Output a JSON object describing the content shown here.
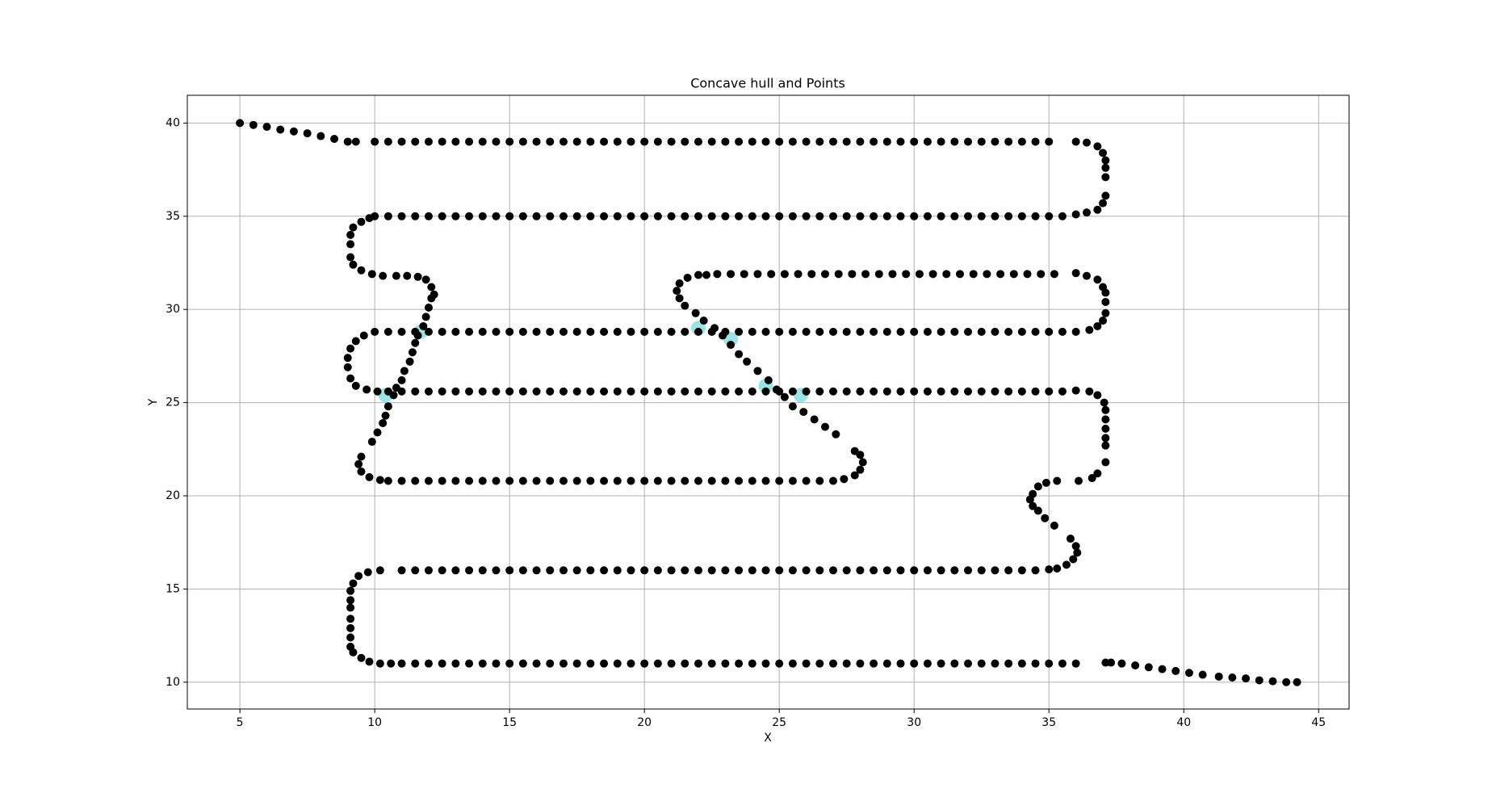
{
  "chart_data": {
    "type": "scatter",
    "title": "Concave hull and Points",
    "xlabel": "X",
    "ylabel": "Y",
    "xlim": [
      3.05,
      46.13
    ],
    "ylim": [
      8.56,
      41.49
    ],
    "xticks": [
      5,
      10,
      15,
      20,
      25,
      30,
      35,
      40,
      45
    ],
    "yticks": [
      10,
      15,
      20,
      25,
      30,
      35,
      40
    ],
    "grid": true,
    "series": [
      {
        "color": "#7fdede",
        "x": [
          11.7,
          10.4,
          22,
          23.2,
          24.5,
          25.8
        ],
        "y": [
          28.8,
          25.4,
          29,
          28.4,
          25.9,
          25.4
        ]
      },
      {
        "color": "#000000",
        "x": [
          5,
          5.5,
          6,
          6.5,
          7,
          7.5,
          8,
          8.5,
          9,
          9.3,
          10,
          10.5,
          11,
          11.5,
          12,
          12.5,
          13,
          13.5,
          14,
          14.5,
          15,
          15.5,
          16,
          16.5,
          17,
          17.5,
          18,
          18.5,
          19,
          19.5,
          20,
          20.5,
          21,
          21.5,
          22,
          22.5,
          23,
          23.5,
          24,
          24.5,
          25,
          25.5,
          26,
          26.5,
          27,
          27.5,
          28,
          28.5,
          29,
          29.5,
          30,
          30.5,
          31,
          31.5,
          32,
          32.5,
          33,
          33.5,
          34,
          34.5,
          35,
          36,
          36.4,
          36.8,
          37,
          37.1,
          37.1,
          37.1,
          37.1,
          37,
          36.8,
          36.4,
          36,
          35.5,
          35,
          34.5,
          34,
          33.5,
          33,
          32.5,
          32,
          31.5,
          31,
          30.5,
          30,
          29.5,
          29,
          28.5,
          28,
          27.5,
          27,
          26.5,
          26,
          25.5,
          25,
          24.5,
          24,
          23.5,
          23,
          22.5,
          22,
          21.5,
          21,
          20.5,
          20,
          19.5,
          19,
          18.5,
          18,
          17.5,
          17,
          16.5,
          16,
          15.5,
          15,
          14.5,
          14,
          13.5,
          13,
          12.5,
          12,
          11.5,
          11,
          10.5,
          10,
          9.8,
          9.5,
          9.2,
          9.1,
          9.1,
          9.1,
          9.2,
          9.5,
          9.9,
          10.3,
          10.8,
          11.2,
          11.6,
          11.9,
          12.1,
          12.2,
          12.1,
          12,
          11.9,
          11.8,
          11.6,
          11.5,
          11.4,
          11.3,
          11.1,
          11,
          10.8,
          10.7,
          10.5,
          10.4,
          10.3,
          10.1,
          9.9,
          9.5,
          9.4,
          9.5,
          9.8,
          10.2,
          10.5,
          11,
          11.5,
          12,
          12.5,
          13,
          13.5,
          14,
          14.5,
          15,
          15.5,
          16,
          16.5,
          17,
          17.5,
          18,
          18.5,
          19,
          19.5,
          20,
          20.5,
          21,
          21.5,
          22,
          22.5,
          23,
          23.5,
          24,
          24.5,
          25,
          25.5,
          26,
          26.5,
          27,
          27.4,
          27.8,
          28,
          28.1,
          28,
          27.8,
          27.1,
          26.7,
          26.3,
          25.9,
          25.5,
          25.2,
          24.9,
          24.6,
          24.2,
          23.8,
          23.5,
          23.2,
          22.9,
          22.6,
          22.2,
          21.9,
          21.5,
          21.3,
          21.2,
          21.3,
          21.6,
          22,
          22.3,
          22.7,
          23.2,
          23.7,
          24.2,
          24.7,
          25.2,
          25.7,
          26.2,
          26.7,
          27.2,
          27.7,
          28.2,
          28.7,
          29.2,
          29.7,
          30.2,
          30.7,
          31.2,
          31.7,
          32.2,
          32.7,
          33.2,
          33.7,
          34.2,
          34.7,
          35.2,
          36,
          36.4,
          36.8,
          37,
          37.1,
          37.1,
          37.1,
          37,
          36.8,
          36.5,
          36,
          35.5,
          35,
          34.5,
          34,
          33.5,
          33,
          32.5,
          32,
          31.5,
          31,
          30.5,
          30,
          29.5,
          29,
          28.5,
          28,
          27.5,
          27,
          26.5,
          26,
          25.5,
          25,
          24.5,
          24,
          23.5,
          23,
          22.5,
          22,
          21.5,
          21,
          20.5,
          20,
          19.5,
          19,
          18.5,
          18,
          17.5,
          17,
          16.5,
          16,
          15.5,
          15,
          14.5,
          14,
          13.5,
          13,
          12.5,
          12,
          11.5,
          11,
          10.5,
          10,
          9.6,
          9.3,
          9.1,
          9,
          9,
          9.1,
          9.3,
          9.7,
          10.1,
          10.5,
          11,
          11.5,
          12,
          12.5,
          13,
          13.5,
          14,
          14.5,
          15,
          15.5,
          16,
          16.5,
          17,
          17.5,
          18,
          18.5,
          19,
          19.5,
          20,
          20.5,
          21,
          21.5,
          22,
          22.5,
          23,
          23.5,
          24,
          24.5,
          25,
          25.5,
          26,
          26.5,
          27,
          27.5,
          28,
          28.5,
          29,
          29.5,
          30,
          30.5,
          31,
          31.5,
          32,
          32.5,
          33,
          33.5,
          34,
          34.5,
          35,
          35.5,
          36,
          36.5,
          36.8,
          37.05,
          37.1,
          37.1,
          37.1,
          37.1,
          37.1,
          37.1,
          36.8,
          36.6,
          36.1,
          35.3,
          34.9,
          34.6,
          34.4,
          34.3,
          34.4,
          34.6,
          34.85,
          35.2,
          35.8,
          36,
          36.05,
          35.9,
          35.65,
          35.3,
          35,
          34.5,
          34,
          33.5,
          33,
          32.5,
          32,
          31.5,
          31,
          30.5,
          30,
          29.5,
          29,
          28.5,
          28,
          27.5,
          27,
          26.5,
          26,
          25.5,
          25,
          24.5,
          24,
          23.5,
          23,
          22.5,
          22,
          21.5,
          21,
          20.5,
          20,
          19.5,
          19,
          18.5,
          18,
          17.5,
          17,
          16.5,
          16,
          15.5,
          15,
          14.5,
          14,
          13.5,
          13,
          12.5,
          12,
          11.5,
          11,
          10.2,
          9.75,
          9.4,
          9.2,
          9.1,
          9.1,
          9.1,
          9.1,
          9.1,
          9.1,
          9.1,
          9.2,
          9.5,
          9.8,
          10.2,
          10.6,
          11,
          11.5,
          12,
          12.5,
          13,
          13.5,
          14,
          14.5,
          15,
          15.5,
          16,
          16.5,
          17,
          17.5,
          18,
          18.5,
          19,
          19.5,
          20,
          20.5,
          21,
          21.5,
          22,
          22.5,
          23,
          23.5,
          24,
          24.5,
          25,
          25.5,
          26,
          26.5,
          27,
          27.5,
          28,
          28.5,
          29,
          29.5,
          30,
          30.5,
          31,
          31.5,
          32,
          32.5,
          33,
          33.5,
          34,
          34.5,
          35,
          35.5,
          36,
          37.1,
          37.3,
          37.7,
          38.2,
          38.7,
          39.2,
          39.7,
          40.2,
          40.7,
          41.3,
          41.8,
          42.3,
          42.8,
          43.3,
          43.8,
          44.2
        ],
        "y": [
          40,
          39.9,
          39.8,
          39.65,
          39.55,
          39.45,
          39.3,
          39.15,
          39,
          39,
          39,
          39,
          39,
          39,
          39,
          39,
          39,
          39,
          39,
          39,
          39,
          39,
          39,
          39,
          39,
          39,
          39,
          39,
          39,
          39,
          39,
          39,
          39,
          39,
          39,
          39,
          39,
          39,
          39,
          39,
          39,
          39,
          39,
          39,
          39,
          39,
          39,
          39,
          39,
          39,
          39,
          39,
          39,
          39,
          39,
          39,
          39,
          39,
          39,
          39,
          39,
          39,
          38.95,
          38.75,
          38.4,
          38,
          37.6,
          37.1,
          36.1,
          35.7,
          35.35,
          35.2,
          35.1,
          35,
          35,
          35,
          35,
          35,
          35,
          35,
          35,
          35,
          35,
          35,
          35,
          35,
          35,
          35,
          35,
          35,
          35,
          35,
          35,
          35,
          35,
          35,
          35,
          35,
          35,
          35,
          35,
          35,
          35,
          35,
          35,
          35,
          35,
          35,
          35,
          35,
          35,
          35,
          35,
          35,
          35,
          35,
          35,
          35,
          35,
          35,
          35,
          35,
          35,
          35,
          35,
          34.9,
          34.7,
          34.4,
          34,
          33.5,
          32.8,
          32.4,
          32.1,
          31.9,
          31.8,
          31.8,
          31.8,
          31.75,
          31.6,
          31.2,
          30.8,
          30.6,
          30.1,
          29.6,
          29.1,
          28.6,
          28.2,
          27.7,
          27.2,
          26.7,
          26.2,
          25.8,
          25.4,
          24.8,
          24.3,
          23.9,
          23.4,
          22.9,
          22.1,
          21.7,
          21.3,
          21,
          20.85,
          20.8,
          20.8,
          20.8,
          20.8,
          20.8,
          20.8,
          20.8,
          20.8,
          20.8,
          20.8,
          20.8,
          20.8,
          20.8,
          20.8,
          20.8,
          20.8,
          20.8,
          20.8,
          20.8,
          20.8,
          20.8,
          20.8,
          20.8,
          20.8,
          20.8,
          20.8,
          20.8,
          20.8,
          20.8,
          20.8,
          20.8,
          20.8,
          20.8,
          20.8,
          20.9,
          21.1,
          21.4,
          21.8,
          22.2,
          22.4,
          23.3,
          23.7,
          24.1,
          24.5,
          24.8,
          25.3,
          25.7,
          26.2,
          26.7,
          27.2,
          27.6,
          28.1,
          28.6,
          29,
          29.4,
          29.8,
          30.2,
          30.6,
          31,
          31.4,
          31.7,
          31.85,
          31.85,
          31.9,
          31.9,
          31.9,
          31.9,
          31.9,
          31.9,
          31.9,
          31.9,
          31.9,
          31.9,
          31.9,
          31.9,
          31.9,
          31.9,
          31.9,
          31.9,
          31.9,
          31.9,
          31.9,
          31.9,
          31.9,
          31.9,
          31.9,
          31.9,
          31.9,
          31.9,
          31.95,
          31.8,
          31.6,
          31.2,
          30.9,
          30.4,
          29.8,
          29.4,
          29.1,
          28.9,
          28.8,
          28.8,
          28.8,
          28.8,
          28.8,
          28.8,
          28.8,
          28.8,
          28.8,
          28.8,
          28.8,
          28.8,
          28.8,
          28.8,
          28.8,
          28.8,
          28.8,
          28.8,
          28.8,
          28.8,
          28.8,
          28.8,
          28.8,
          28.8,
          28.8,
          28.8,
          28.8,
          28.8,
          28.8,
          28.8,
          28.8,
          28.8,
          28.8,
          28.8,
          28.8,
          28.8,
          28.8,
          28.8,
          28.8,
          28.8,
          28.8,
          28.8,
          28.8,
          28.8,
          28.8,
          28.8,
          28.8,
          28.8,
          28.8,
          28.8,
          28.8,
          28.8,
          28.8,
          28.6,
          28.3,
          27.9,
          27.4,
          26.9,
          26.3,
          25.9,
          25.7,
          25.6,
          25.6,
          25.6,
          25.6,
          25.6,
          25.6,
          25.6,
          25.6,
          25.6,
          25.6,
          25.6,
          25.6,
          25.6,
          25.6,
          25.6,
          25.6,
          25.6,
          25.6,
          25.6,
          25.6,
          25.6,
          25.6,
          25.6,
          25.6,
          25.6,
          25.6,
          25.6,
          25.6,
          25.6,
          25.6,
          25.6,
          25.6,
          25.6,
          25.6,
          25.6,
          25.6,
          25.6,
          25.6,
          25.6,
          25.6,
          25.6,
          25.6,
          25.6,
          25.6,
          25.6,
          25.6,
          25.6,
          25.6,
          25.6,
          25.6,
          25.6,
          25.6,
          25.65,
          25.6,
          25.4,
          25,
          24.6,
          24.1,
          23.6,
          23.1,
          22.7,
          21.8,
          21.2,
          20.95,
          20.8,
          20.8,
          20.7,
          20.5,
          20.1,
          19.8,
          19.45,
          19.2,
          18.8,
          18.4,
          17.7,
          17.3,
          16.95,
          16.6,
          16.3,
          16.1,
          16.05,
          16,
          16,
          16,
          16,
          16,
          16,
          16,
          16,
          16,
          16,
          16,
          16,
          16,
          16,
          16,
          16,
          16,
          16,
          16,
          16,
          16,
          16,
          16,
          16,
          16,
          16,
          16,
          16,
          16,
          16,
          16,
          16,
          16,
          16,
          16,
          16,
          16,
          16,
          16,
          16,
          16,
          16,
          16,
          16,
          16,
          16,
          16,
          16,
          16,
          15.9,
          15.7,
          15.3,
          14.9,
          14.4,
          14,
          13.4,
          12.9,
          12.4,
          11.9,
          11.6,
          11.3,
          11.1,
          11,
          11,
          11,
          11,
          11,
          11,
          11,
          11,
          11,
          11,
          11,
          11,
          11,
          11,
          11,
          11,
          11,
          11,
          11,
          11,
          11,
          11,
          11,
          11,
          11,
          11,
          11,
          11,
          11,
          11,
          11,
          11,
          11,
          11,
          11,
          11,
          11,
          11,
          11,
          11,
          11,
          11,
          11,
          11,
          11,
          11,
          11,
          11,
          11,
          11,
          11,
          11,
          11,
          11.05,
          11.05,
          11,
          10.9,
          10.8,
          10.7,
          10.6,
          10.5,
          10.4,
          10.3,
          10.25,
          10.2,
          10.1,
          10.05,
          10,
          10
        ]
      }
    ]
  }
}
